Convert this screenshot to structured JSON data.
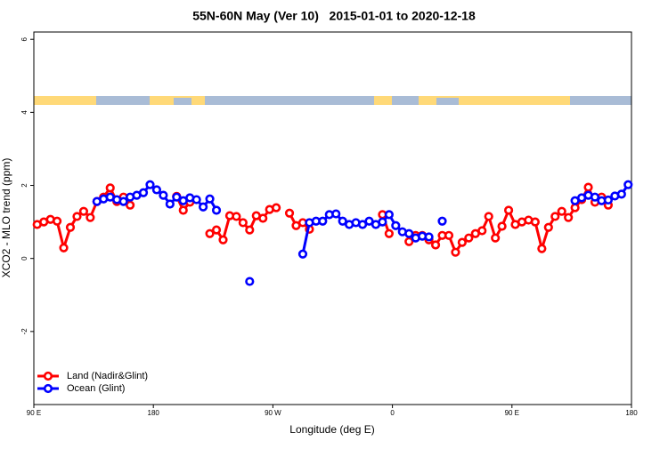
{
  "chart_data": {
    "type": "line",
    "title": "55N-60N May (Ver 10)   2015-01-01 to 2020-12-18",
    "x_label": "Longitude (deg E)",
    "y_label": "XCO2 - MLO trend (ppm)",
    "xlim": [
      90,
      540
    ],
    "ylim": [
      -4,
      6.2
    ],
    "xticks": [
      {
        "value": 90,
        "label": "90 E"
      },
      180,
      {
        "value": 270,
        "label": "90 W"
      },
      {
        "value": 360,
        "label": "0"
      },
      {
        "value": 450,
        "label": "90 E"
      },
      {
        "value": 540,
        "label": "180"
      }
    ],
    "yticks": [
      -2,
      0,
      2,
      4,
      6
    ],
    "legend": "bottom-left",
    "x": [
      92.5,
      97.5,
      102.5,
      107.5,
      112.5,
      117.5,
      122.5,
      127.5,
      132.5,
      137.5,
      142.5,
      147.5,
      152.5,
      157.5,
      162.5,
      167.5,
      172.5,
      177.5,
      182.5,
      187.5,
      192.5,
      197.5,
      202.5,
      207.5,
      212.5,
      217.5,
      222.5,
      227.5,
      232.5,
      237.5,
      242.5,
      247.5,
      252.5,
      257.5,
      262.5,
      267.5,
      272.5,
      277.5,
      282.5,
      287.5,
      292.5,
      297.5,
      302.5,
      307.5,
      312.5,
      317.5,
      322.5,
      327.5,
      332.5,
      337.5,
      342.5,
      347.5,
      352.5,
      357.5,
      362.5,
      367.5,
      372.5,
      377.5,
      382.5,
      387.5,
      392.5,
      397.5,
      402.5,
      407.5,
      412.5,
      417.5,
      422.5,
      427.5,
      432.5,
      437.5,
      442.5,
      447.5,
      452.5,
      457.5,
      462.5,
      467.5,
      472.5,
      477.5,
      482.5,
      487.5,
      492.5,
      497.5,
      502.5,
      507.5,
      512.5,
      517.5,
      522.5,
      527.5,
      532.5,
      537.5
    ],
    "series": [
      {
        "name": "Land (Nadir&Glint)",
        "color": "#ff0000",
        "values": [
          0.93,
          1.0,
          1.07,
          1.02,
          0.29,
          0.85,
          1.15,
          1.29,
          1.12,
          1.56,
          1.68,
          1.93,
          1.56,
          1.68,
          1.46,
          null,
          null,
          null,
          null,
          null,
          null,
          1.7,
          1.32,
          1.54,
          null,
          null,
          0.68,
          0.78,
          0.51,
          1.17,
          1.15,
          0.98,
          0.78,
          1.17,
          1.1,
          1.34,
          1.39,
          null,
          1.24,
          0.9,
          0.98,
          0.8,
          null,
          null,
          null,
          null,
          null,
          null,
          null,
          null,
          null,
          null,
          1.2,
          0.68,
          null,
          null,
          0.46,
          0.63,
          0.63,
          0.51,
          0.37,
          0.63,
          0.63,
          0.17,
          0.44,
          0.56,
          0.68,
          0.76,
          1.15,
          0.56,
          0.88,
          1.32,
          0.93,
          1.0,
          1.05,
          1.0,
          0.27,
          0.85,
          1.15,
          1.29,
          1.12,
          1.39,
          1.61,
          1.95,
          1.54,
          1.68,
          1.46,
          null,
          null,
          null
        ]
      },
      {
        "name": "Ocean (Glint)",
        "color": "#0000ff",
        "values": [
          null,
          null,
          null,
          null,
          null,
          null,
          null,
          null,
          null,
          1.56,
          1.63,
          1.68,
          1.61,
          1.56,
          1.68,
          1.73,
          1.8,
          2.02,
          1.88,
          1.73,
          1.49,
          1.68,
          1.58,
          1.66,
          1.61,
          1.41,
          1.63,
          1.32,
          null,
          null,
          null,
          null,
          -0.63,
          null,
          null,
          null,
          null,
          null,
          null,
          null,
          0.12,
          0.98,
          1.02,
          1.02,
          1.2,
          1.22,
          1.02,
          0.93,
          0.98,
          0.93,
          1.02,
          0.93,
          1.0,
          1.2,
          0.9,
          0.73,
          0.68,
          0.56,
          0.61,
          0.59,
          null,
          1.02,
          null,
          null,
          null,
          null,
          null,
          null,
          null,
          null,
          null,
          null,
          null,
          null,
          null,
          null,
          null,
          null,
          null,
          null,
          null,
          1.58,
          1.66,
          1.73,
          1.68,
          1.58,
          1.6,
          1.71,
          1.76,
          2.02
        ]
      }
    ]
  }
}
